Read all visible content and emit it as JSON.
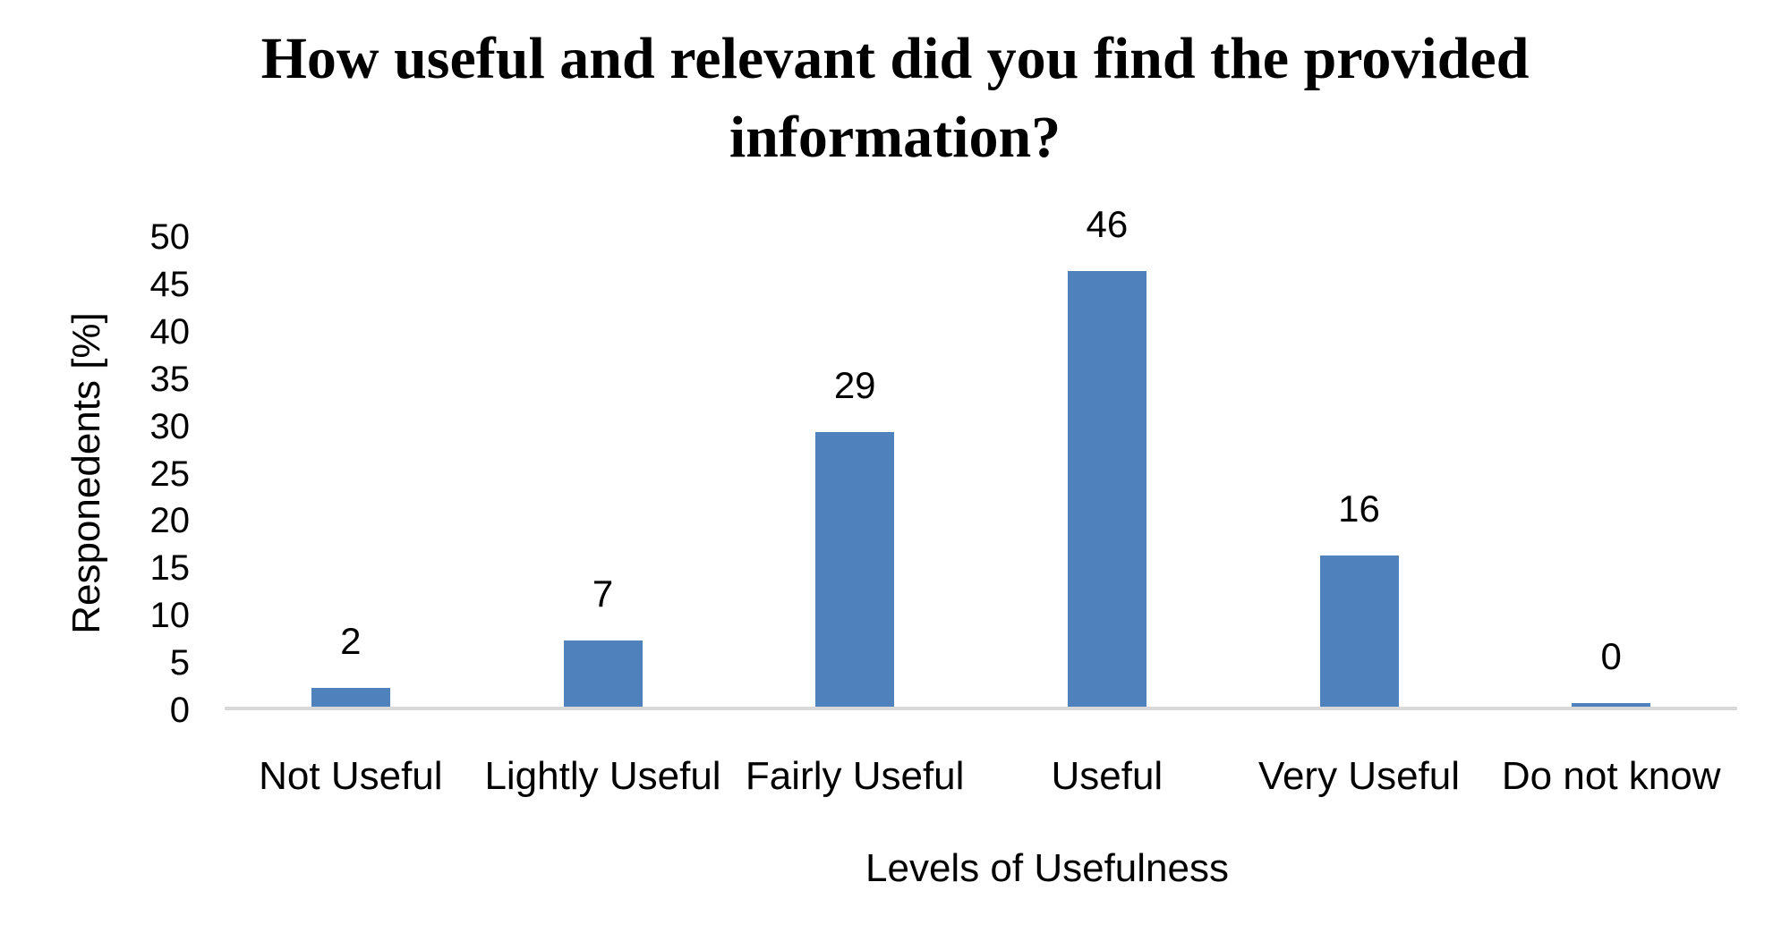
{
  "chart_data": {
    "type": "bar",
    "title": "How useful and relevant did you find the provided information?",
    "title_lines": [
      "How useful and relevant did you find the provided",
      "information?"
    ],
    "categories": [
      "Not Useful",
      "Lightly Useful",
      "Fairly Useful",
      "Useful",
      "Very Useful",
      "Do not know"
    ],
    "values": [
      2,
      7,
      29,
      46,
      16,
      0
    ],
    "data_labels": [
      "2",
      "7",
      "29",
      "46",
      "16",
      "0"
    ],
    "xlabel": "Levels of Usefulness",
    "ylabel": "Responedents [%]",
    "ylim": [
      0,
      50
    ],
    "yticks": [
      0,
      5,
      10,
      15,
      20,
      25,
      30,
      35,
      40,
      45,
      50
    ],
    "grid": "off",
    "legend": "none",
    "bar_color": "#4f81bd",
    "axis_line_color": "#d9d9d9",
    "text_color": "#000000"
  }
}
